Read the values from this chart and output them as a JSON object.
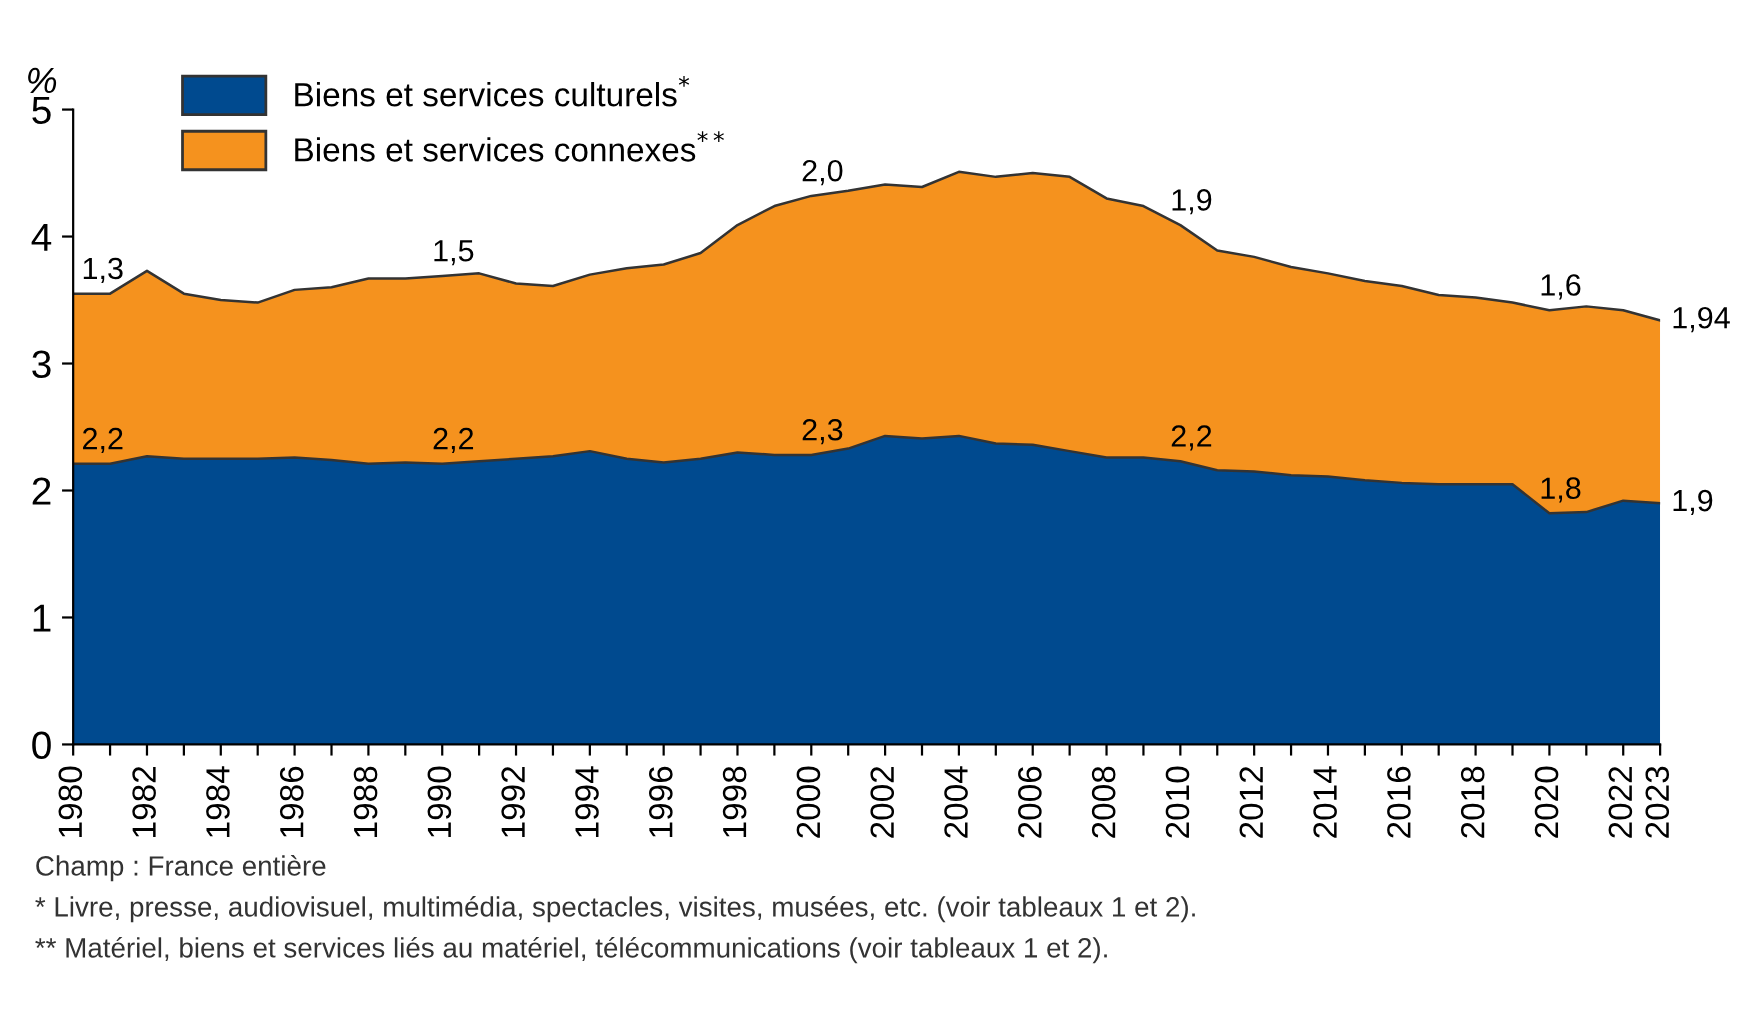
{
  "chart_data": {
    "type": "area",
    "stacked": true,
    "ylabel": "%",
    "x": [
      1980,
      1981,
      1982,
      1983,
      1984,
      1985,
      1986,
      1987,
      1988,
      1989,
      1990,
      1991,
      1992,
      1993,
      1994,
      1995,
      1996,
      1997,
      1998,
      1999,
      2000,
      2001,
      2002,
      2003,
      2004,
      2005,
      2006,
      2007,
      2008,
      2009,
      2010,
      2011,
      2012,
      2013,
      2014,
      2015,
      2016,
      2017,
      2018,
      2019,
      2020,
      2021,
      2022,
      2023
    ],
    "series": [
      {
        "name": "Biens et services culturels$^{*}$",
        "color": "#004a8f",
        "values": [
          2.21,
          2.21,
          2.27,
          2.25,
          2.25,
          2.25,
          2.26,
          2.24,
          2.21,
          2.22,
          2.21,
          2.23,
          2.25,
          2.27,
          2.31,
          2.25,
          2.22,
          2.25,
          2.3,
          2.28,
          2.28,
          2.33,
          2.43,
          2.41,
          2.43,
          2.37,
          2.36,
          2.31,
          2.26,
          2.26,
          2.23,
          2.16,
          2.15,
          2.12,
          2.11,
          2.08,
          2.06,
          2.05,
          2.05,
          2.05,
          1.82,
          1.83,
          1.92,
          1.9
        ],
        "value_labels": [
          "2,2",
          null,
          null,
          null,
          null,
          null,
          null,
          null,
          null,
          null,
          "2,2",
          null,
          null,
          null,
          null,
          null,
          null,
          null,
          null,
          null,
          "2,3",
          null,
          null,
          null,
          null,
          null,
          null,
          null,
          null,
          null,
          "2,2",
          null,
          null,
          null,
          null,
          null,
          null,
          null,
          null,
          null,
          "1,8",
          null,
          null,
          "1,9"
        ]
      },
      {
        "name": "Biens et services connexes$^{**}$",
        "color": "#f5921e",
        "values": [
          1.34,
          1.34,
          1.46,
          1.3,
          1.25,
          1.23,
          1.32,
          1.36,
          1.46,
          1.45,
          1.48,
          1.48,
          1.38,
          1.34,
          1.39,
          1.5,
          1.56,
          1.62,
          1.79,
          1.96,
          2.04,
          2.03,
          1.98,
          1.98,
          2.08,
          2.1,
          2.14,
          2.16,
          2.04,
          1.98,
          1.86,
          1.73,
          1.69,
          1.64,
          1.6,
          1.57,
          1.55,
          1.49,
          1.47,
          1.43,
          1.6,
          1.62,
          1.5,
          1.44
        ],
        "value_labels": [
          "1,3",
          null,
          null,
          null,
          null,
          null,
          null,
          null,
          null,
          null,
          "1,5",
          null,
          null,
          null,
          null,
          null,
          null,
          null,
          null,
          null,
          "2,0",
          null,
          null,
          null,
          null,
          null,
          null,
          null,
          null,
          null,
          "1,9",
          null,
          null,
          null,
          null,
          null,
          null,
          null,
          null,
          null,
          "1,6",
          null,
          null,
          null
        ]
      }
    ],
    "xlim": [
      1980,
      2023
    ],
    "xticks": [
      1980,
      {
        "value": 1981,
        "label": null
      },
      1982,
      {
        "value": 1983,
        "label": null
      },
      1984,
      {
        "value": 1985,
        "label": null
      },
      1986,
      {
        "value": 1987,
        "label": null
      },
      1988,
      {
        "value": 1989,
        "label": null
      },
      1990,
      {
        "value": 1991,
        "label": null
      },
      1992,
      {
        "value": 1993,
        "label": null
      },
      1994,
      {
        "value": 1995,
        "label": null
      },
      1996,
      {
        "value": 1997,
        "label": null
      },
      1998,
      {
        "value": 1999,
        "label": null
      },
      2000,
      {
        "value": 2001,
        "label": null
      },
      2002,
      {
        "value": 2003,
        "label": null
      },
      2004,
      {
        "value": 2005,
        "label": null
      },
      2006,
      {
        "value": 2007,
        "label": null
      },
      2008,
      {
        "value": 2009,
        "label": null
      },
      2010,
      {
        "value": 2011,
        "label": null
      },
      2012,
      {
        "value": 2013,
        "label": null
      },
      2014,
      {
        "value": 2015,
        "label": null
      },
      2016,
      {
        "value": 2017,
        "label": null
      },
      2018,
      {
        "value": 2019,
        "label": null
      },
      2020,
      {
        "value": 2021,
        "label": null
      },
      2022,
      2023
    ],
    "ylim": [
      0,
      5
    ],
    "yticks": [
      0,
      1,
      2,
      3,
      4,
      5
    ],
    "grid": false,
    "legend": "top left",
    "annotations": [
      {
        "text": "1,94",
        "x": 2023,
        "y": 3.34
      },
      "Champ : France entière",
      "* Livre, presse, audiovisuel, multimédia, spectacles, visites, musées, etc. (voir tableaux 1 et 2).",
      "** Matériel, biens et services liés au matériel, télécommunications (voir tableaux 1 et 2)."
    ]
  }
}
